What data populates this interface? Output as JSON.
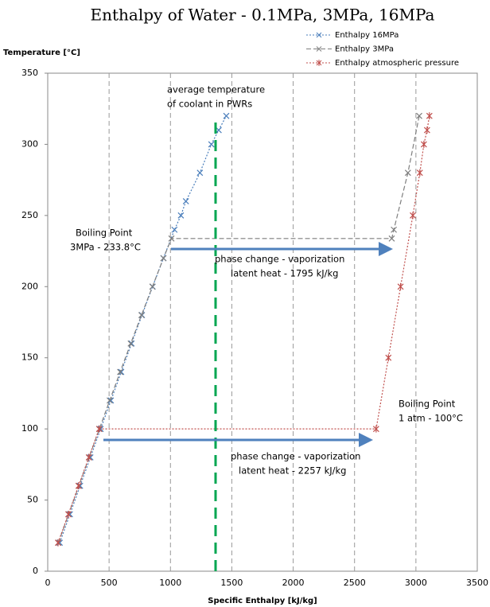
{
  "chart_data": {
    "type": "line",
    "title": "Enthalpy of Water - 0.1MPa, 3MPa, 16MPa",
    "y_label": "Temperature [°C]",
    "x_label": "Specific Enthalpy [kJ/kg]",
    "xlim": [
      0,
      3500
    ],
    "xticks": [
      0,
      500,
      1000,
      1500,
      2000,
      2500,
      3000,
      3500
    ],
    "ylim": [
      0,
      350
    ],
    "yticks": [
      0,
      50,
      100,
      150,
      200,
      250,
      300,
      350
    ],
    "grid": "x",
    "legend": "top-right",
    "series": [
      {
        "name": "Enthalpy 16MPa",
        "color": "#4a7ebb",
        "line_style": "dotted",
        "marker": "x",
        "x": [
          98,
          181,
          264,
          348,
          431,
          515,
          599,
          683,
          768,
          855,
          943,
          1033,
          1085,
          1126,
          1240,
          1333,
          1393,
          1455
        ],
        "values": [
          20,
          40,
          60,
          80,
          100,
          120,
          140,
          160,
          180,
          200,
          220,
          240,
          250,
          260,
          280,
          300,
          310,
          320
        ]
      },
      {
        "name": "Enthalpy 3MPa",
        "color": "#7f7f7f",
        "line_style": "dashed",
        "marker": "x",
        "x": [
          87,
          170,
          254,
          337,
          421,
          505,
          590,
          676,
          764,
          853,
          943,
          1008,
          2803,
          2820,
          2935,
          3027
        ],
        "values": [
          20,
          40,
          60,
          80,
          100,
          120,
          140,
          160,
          180,
          200,
          220,
          233.8,
          233.8,
          240,
          280,
          320
        ]
      },
      {
        "name": "Enthalpy atmospheric pressure",
        "color": "#c0504d",
        "line_style": "dotted",
        "marker": "asterisk",
        "x": [
          84,
          168,
          251,
          335,
          419,
          2676,
          2776,
          2875,
          2975,
          3032,
          3065,
          3091,
          3110
        ],
        "values": [
          20,
          40,
          60,
          80,
          100,
          100,
          150,
          200,
          250,
          280,
          300,
          310,
          320
        ]
      }
    ],
    "annotations": [
      [
        "average temperature",
        "of coolant in PWRs"
      ],
      [
        "Boiling Point",
        "3MPa - 233.8°C"
      ],
      [
        "phase change - vaporization",
        "latent heat - 1795 kJ/kg"
      ],
      [
        "Boiling Point",
        "1 atm - 100°C"
      ],
      [
        "phase change - vaporization",
        "latent heat - 2257 kJ/kg"
      ]
    ]
  }
}
